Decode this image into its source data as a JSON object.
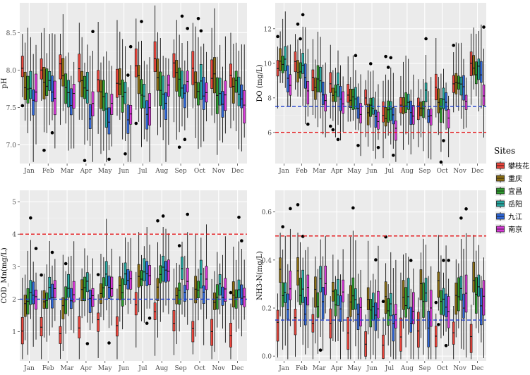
{
  "colors": {
    "panel": "#ebebeb",
    "grid_major": "#ffffff",
    "grid_minor": "#f3f3f3",
    "red_ref": "#e41a1c",
    "blue_ref": "#1f3fd0",
    "site_colors": [
      "#e8453c",
      "#8a6d12",
      "#2e9b2e",
      "#26a7a0",
      "#2f67d8",
      "#d83ad8"
    ]
  },
  "legend": {
    "title": "Sites",
    "items": [
      "攀枝花",
      "重庆",
      "宜昌",
      "岳阳",
      "九江",
      "南京"
    ]
  },
  "chart_data": [
    {
      "id": "ph",
      "type": "box",
      "ylabel": "pH",
      "ylim": [
        6.75,
        8.9
      ],
      "yticks": [
        7.0,
        7.5,
        8.0,
        8.5
      ],
      "ytick_labels": [
        "7.0",
        "7.5",
        "8.0",
        "8.5"
      ],
      "categories": [
        "Jan",
        "Feb",
        "Mar",
        "Apr",
        "May",
        "Jun",
        "Jul",
        "Aug",
        "Sep",
        "Oct",
        "Nov",
        "Dec"
      ],
      "reference_lines": [],
      "site_offsets": [
        0.15,
        0.0,
        -0.08,
        -0.1,
        -0.35,
        -0.2
      ],
      "month_base": [
        7.9,
        7.92,
        7.88,
        7.82,
        7.72,
        7.75,
        7.82,
        7.87,
        7.95,
        7.9,
        7.88,
        7.85
      ],
      "iqr": 0.32,
      "whisker": 0.55
    },
    {
      "id": "do",
      "type": "box",
      "ylabel": "DO (mg/L)",
      "ylim": [
        4.2,
        13.5
      ],
      "yticks": [
        6,
        8,
        10,
        12
      ],
      "ytick_labels": [
        "6",
        "8",
        "10",
        "12"
      ],
      "categories": [
        "Jan",
        "Feb",
        "Mar",
        "Apr",
        "May",
        "Jun",
        "Jul",
        "Aug",
        "Sep",
        "Oct",
        "Nov",
        "Dec"
      ],
      "reference_lines": [
        {
          "value": 7.5,
          "color": "blue"
        },
        {
          "value": 6.0,
          "color": "red"
        }
      ],
      "site_offsets": [
        0.4,
        0.1,
        -0.1,
        0.5,
        -0.3,
        -0.7
      ],
      "month_base": [
        9.6,
        9.3,
        8.9,
        8.3,
        7.8,
        7.3,
        7.0,
        7.6,
        7.5,
        7.8,
        8.6,
        9.2
      ],
      "iqr": 1.0,
      "whisker": 1.8
    },
    {
      "id": "cod",
      "type": "box",
      "ylabel": "COD_Mn(mg/L)",
      "ylim": [
        0.1,
        5.35
      ],
      "yticks": [
        1,
        2,
        3,
        4,
        5
      ],
      "ytick_labels": [
        "1",
        "2",
        "3",
        "4",
        "5"
      ],
      "categories": [
        "Jan",
        "Feb",
        "Mar",
        "Apr",
        "May",
        "Jun",
        "Jul",
        "Aug",
        "Sep",
        "Oct",
        "Nov",
        "Dec"
      ],
      "reference_lines": [
        {
          "value": 4.0,
          "color": "red"
        },
        {
          "value": 2.0,
          "color": "blue"
        }
      ],
      "site_offsets": [
        -1.1,
        -0.1,
        0.0,
        0.3,
        0.05,
        0.1
      ],
      "month_base": [
        2.1,
        2.1,
        2.1,
        2.2,
        2.3,
        2.4,
        2.7,
        2.6,
        2.4,
        2.3,
        2.2,
        2.2
      ],
      "iqr": 0.55,
      "whisker": 1.1
    },
    {
      "id": "nh3",
      "type": "box",
      "ylabel": "NH3-N(mg/L)",
      "ylim": [
        -0.02,
        0.69
      ],
      "yticks": [
        0.0,
        0.2,
        0.4,
        0.6
      ],
      "ytick_labels": [
        "0.0",
        "0.2",
        "0.4",
        "0.6"
      ],
      "categories": [
        "Jan",
        "Feb",
        "Mar",
        "Apr",
        "May",
        "Jun",
        "Jul",
        "Aug",
        "Sep",
        "Oct",
        "Nov",
        "Dec"
      ],
      "reference_lines": [
        {
          "value": 0.5,
          "color": "red"
        },
        {
          "value": 0.15,
          "color": "blue"
        }
      ],
      "site_offsets": [
        -0.11,
        0.08,
        0.02,
        0.06,
        -0.03,
        0.04
      ],
      "month_base": [
        0.24,
        0.24,
        0.23,
        0.21,
        0.19,
        0.18,
        0.16,
        0.17,
        0.18,
        0.19,
        0.2,
        0.22
      ],
      "iqr": 0.1,
      "whisker": 0.17
    }
  ]
}
